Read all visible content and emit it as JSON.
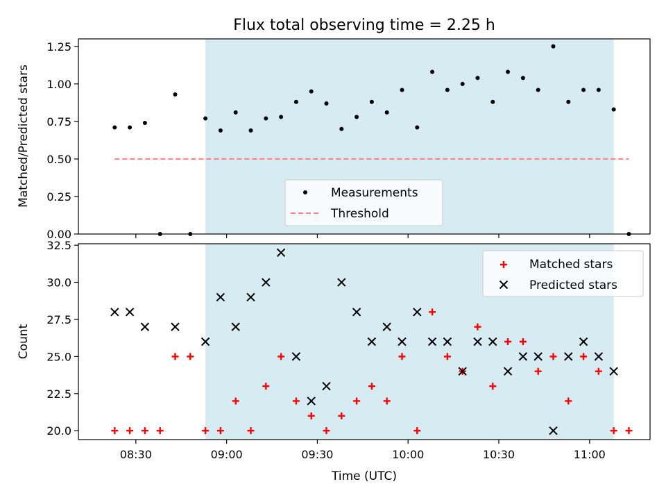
{
  "figure": {
    "title": "Flux total observing time = 2.25 h",
    "xlabel": "Time (UTC)",
    "xticks": [
      "08:30",
      "09:00",
      "09:30",
      "10:00",
      "10:30",
      "11:00"
    ]
  },
  "colors": {
    "shade": "#add8e6",
    "measurement": "#000000",
    "threshold": "#ff7f7f",
    "matched": "#ff0000",
    "predicted": "#000000"
  },
  "chart_data": [
    {
      "type": "scatter",
      "panel": "top",
      "title": "Flux total observing time = 2.25 h",
      "xlabel": "Time (UTC)",
      "ylabel": "Matched/Predicted stars",
      "xlim": [
        "08:11",
        "11:20"
      ],
      "ylim": [
        0,
        1.3
      ],
      "yticks": [
        0.0,
        0.25,
        0.5,
        0.75,
        1.0,
        1.25
      ],
      "ytick_labels": [
        "0.00",
        "0.25",
        "0.50",
        "0.75",
        "1.00",
        "1.25"
      ],
      "shaded_span": [
        "08:53",
        "11:08"
      ],
      "legend": {
        "position": "lower-center",
        "entries": [
          "Measurements",
          "Threshold"
        ]
      },
      "threshold": {
        "name": "Threshold",
        "value": 0.5,
        "x_range": [
          "08:23",
          "11:13"
        ]
      },
      "series": [
        {
          "name": "Measurements",
          "x": [
            "08:23",
            "08:28",
            "08:33",
            "08:38",
            "08:43",
            "08:48",
            "08:53",
            "08:58",
            "09:03",
            "09:08",
            "09:13",
            "09:18",
            "09:23",
            "09:28",
            "09:33",
            "09:38",
            "09:43",
            "09:48",
            "09:53",
            "09:58",
            "10:03",
            "10:08",
            "10:13",
            "10:18",
            "10:23",
            "10:28",
            "10:33",
            "10:38",
            "10:43",
            "10:48",
            "10:53",
            "10:58",
            "11:03",
            "11:08",
            "11:13"
          ],
          "y": [
            0.71,
            0.71,
            0.74,
            0.0,
            0.93,
            0.0,
            0.77,
            0.69,
            0.81,
            0.69,
            0.77,
            0.78,
            0.88,
            0.95,
            0.87,
            0.7,
            0.78,
            0.88,
            0.81,
            0.96,
            0.71,
            1.08,
            0.96,
            1.0,
            1.04,
            0.88,
            1.08,
            1.04,
            0.96,
            1.25,
            0.88,
            0.96,
            0.96,
            0.83,
            0.0
          ]
        }
      ]
    },
    {
      "type": "scatter",
      "panel": "bottom",
      "xlabel": "Time (UTC)",
      "ylabel": "Count",
      "xlim": [
        "08:11",
        "11:20"
      ],
      "ylim": [
        19.4,
        32.6
      ],
      "yticks": [
        20.0,
        22.5,
        25.0,
        27.5,
        30.0,
        32.5
      ],
      "ytick_labels": [
        "20.0",
        "22.5",
        "25.0",
        "27.5",
        "30.0",
        "32.5"
      ],
      "shaded_span": [
        "08:53",
        "11:08"
      ],
      "legend": {
        "position": "top-right",
        "entries": [
          "Matched stars",
          "Predicted stars"
        ]
      },
      "series": [
        {
          "name": "Matched stars",
          "x": [
            "08:23",
            "08:28",
            "08:33",
            "08:38",
            "08:43",
            "08:48",
            "08:53",
            "08:58",
            "09:03",
            "09:08",
            "09:13",
            "09:18",
            "09:23",
            "09:28",
            "09:33",
            "09:38",
            "09:43",
            "09:48",
            "09:53",
            "09:58",
            "10:03",
            "10:08",
            "10:13",
            "10:18",
            "10:23",
            "10:28",
            "10:33",
            "10:38",
            "10:43",
            "10:48",
            "10:53",
            "10:58",
            "11:03",
            "11:08",
            "11:13"
          ],
          "y": [
            20,
            20,
            20,
            20,
            25,
            25,
            20,
            20,
            22,
            20,
            23,
            25,
            22,
            21,
            20,
            21,
            22,
            23,
            22,
            25,
            20,
            28,
            25,
            24,
            27,
            23,
            26,
            26,
            24,
            25,
            22,
            25,
            24,
            20,
            20
          ]
        },
        {
          "name": "Predicted stars",
          "x": [
            "08:23",
            "08:28",
            "08:33",
            "08:43",
            "08:53",
            "08:58",
            "09:03",
            "09:08",
            "09:13",
            "09:18",
            "09:23",
            "09:28",
            "09:33",
            "09:38",
            "09:43",
            "09:48",
            "09:53",
            "09:58",
            "10:03",
            "10:08",
            "10:13",
            "10:18",
            "10:23",
            "10:28",
            "10:33",
            "10:38",
            "10:43",
            "10:48",
            "10:53",
            "10:58",
            "11:03",
            "11:08"
          ],
          "y": [
            28,
            28,
            27,
            27,
            26,
            29,
            27,
            29,
            30,
            32,
            25,
            22,
            23,
            30,
            28,
            26,
            27,
            26,
            28,
            26,
            26,
            24,
            26,
            26,
            24,
            25,
            25,
            20,
            25,
            26,
            25,
            24
          ]
        }
      ]
    }
  ]
}
